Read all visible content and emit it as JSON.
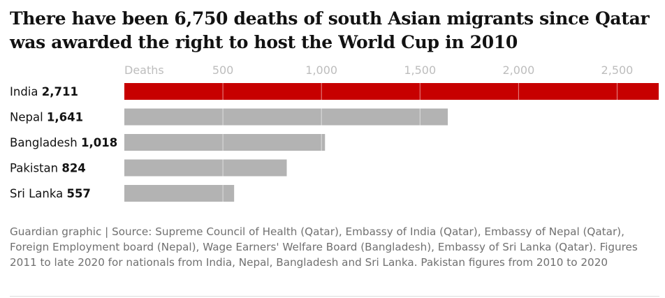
{
  "title": "There have been 6,750 deaths of south Asian migrants since Qatar was awarded the right to host the World Cup in 2010",
  "source": "Guardian graphic | Source: Supreme Council of Health (Qatar), Embassy of India (Qatar), Embassy of Nepal (Qatar), Foreign Employment board (Nepal), Wage Earners' Welfare Board (Bangladesh), Embassy of Sri Lanka (Qatar). Figures 2011 to late 2020 for nationals from India, Nepal, Bangladesh and Sri Lanka. Pakistan figures from 2010 to 2020",
  "chart_data": {
    "type": "bar",
    "orientation": "horizontal",
    "xlabel": "Deaths",
    "xlim": [
      0,
      2711
    ],
    "ticks": [
      500,
      1000,
      1500,
      2000,
      2500
    ],
    "tick_labels": [
      "500",
      "1,000",
      "1,500",
      "2,000",
      "2,500"
    ],
    "categories": [
      "India",
      "Nepal",
      "Bangladesh",
      "Pakistan",
      "Sri Lanka"
    ],
    "values": [
      2711,
      1641,
      1018,
      824,
      557
    ],
    "value_labels": [
      "2,711",
      "1,641",
      "1,018",
      "824",
      "557"
    ],
    "highlight_color": "#c70000",
    "bar_color": "#b3b3b3",
    "highlight_index": 0,
    "grid": true
  }
}
